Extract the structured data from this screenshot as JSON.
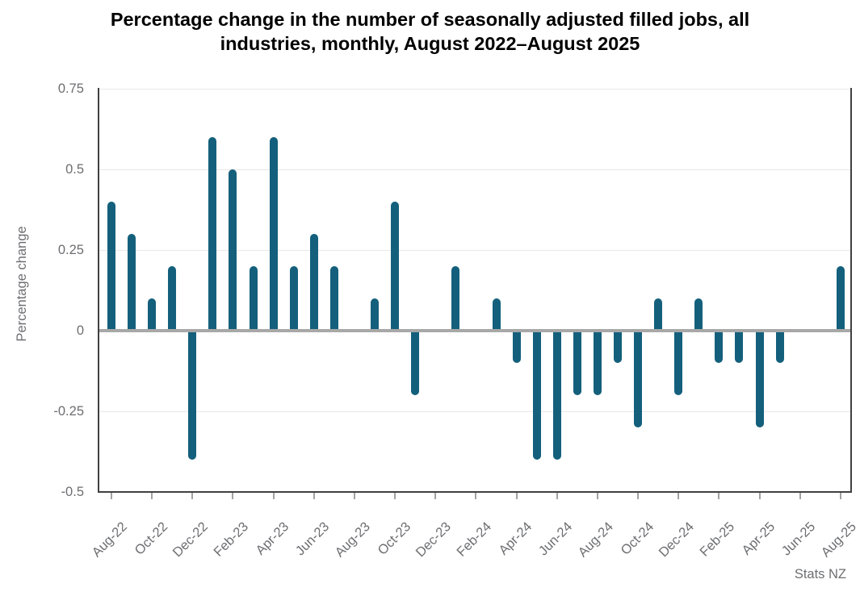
{
  "title": {
    "lines": [
      "Percentage change in the number of seasonally adjusted filled jobs, all",
      "industries, monthly, August 2022–August 2025"
    ]
  },
  "source": "Stats NZ",
  "chart_data": {
    "type": "bar",
    "title": "Percentage change in the number of seasonally adjusted filled jobs, all industries, monthly, August 2022–August 2025",
    "xlabel": "",
    "ylabel": "Percentage change",
    "categories": [
      "Aug-22",
      "Sep-22",
      "Oct-22",
      "Nov-22",
      "Dec-22",
      "Jan-23",
      "Feb-23",
      "Mar-23",
      "Apr-23",
      "May-23",
      "Jun-23",
      "Jul-23",
      "Aug-23",
      "Sep-23",
      "Oct-23",
      "Nov-23",
      "Dec-23",
      "Jan-24",
      "Feb-24",
      "Mar-24",
      "Apr-24",
      "May-24",
      "Jun-24",
      "Jul-24",
      "Aug-24",
      "Sep-24",
      "Oct-24",
      "Nov-24",
      "Dec-24",
      "Jan-25",
      "Feb-25",
      "Mar-25",
      "Apr-25",
      "May-25",
      "Jun-25",
      "Jul-25",
      "Aug-25"
    ],
    "values": [
      0.4,
      0.3,
      0.1,
      0.2,
      -0.4,
      0.6,
      0.5,
      0.2,
      0.6,
      0.2,
      0.3,
      0.2,
      0.0,
      0.1,
      0.4,
      -0.2,
      0.0,
      0.2,
      0.0,
      0.1,
      -0.1,
      -0.4,
      -0.4,
      -0.2,
      -0.2,
      -0.1,
      -0.3,
      0.1,
      -0.2,
      0.1,
      -0.1,
      -0.1,
      -0.3,
      -0.1,
      0.0,
      0.0,
      0.2
    ],
    "yticks": [
      0.75,
      0.5,
      0.25,
      0,
      -0.25,
      -0.5
    ],
    "ylim": [
      -0.5,
      0.75
    ],
    "x_label_every": 2,
    "grid": true,
    "zero_line": true,
    "legend": "none",
    "bar_color": "#14607C"
  }
}
